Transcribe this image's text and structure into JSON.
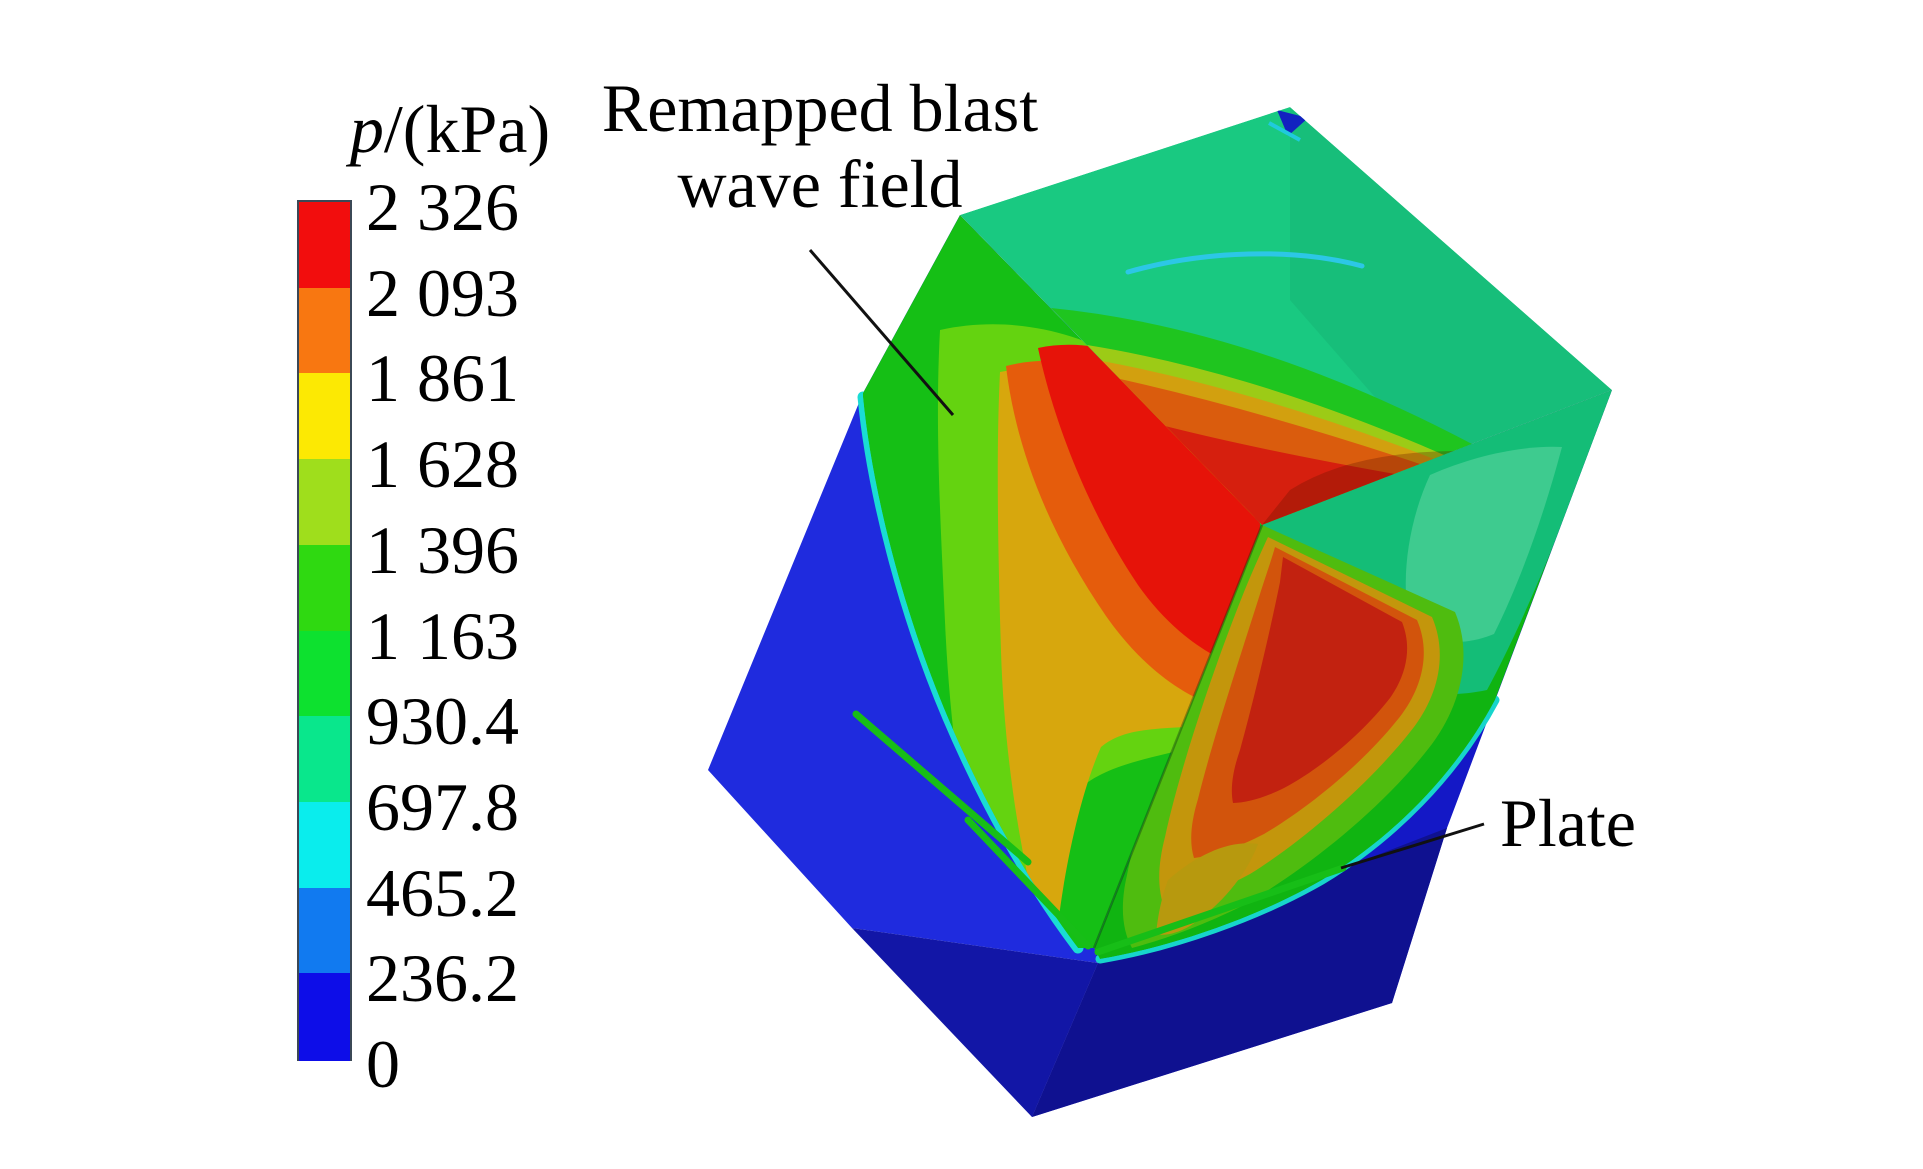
{
  "legend": {
    "title_italic": "p",
    "title_rest": "/(kPa)",
    "tick_labels": [
      "2 326",
      "2 093",
      "1 861",
      "1 628",
      "1 396",
      "1 163",
      "930.4",
      "697.8",
      "465.2",
      "236.2",
      "0"
    ],
    "block_colors": [
      "#F20D0D",
      "#F87711",
      "#FCE903",
      "#9FDE1C",
      "#2FD911",
      "#0DE12F",
      "#09E78C",
      "#0AEDED",
      "#117AF0",
      "#0D0DE8"
    ]
  },
  "annotations": {
    "blast_line1": "Remapped blast",
    "blast_line2": "wave field",
    "plate": "Plate"
  },
  "chart_data": {
    "type": "heatmap",
    "title": "",
    "value_label": "p/(kPa)",
    "colorbar_levels_kpa": [
      2326,
      2093,
      1861,
      1628,
      1396,
      1163,
      930.4,
      697.8,
      465.2,
      236.2,
      0
    ],
    "colorbar_colors_top_to_bottom": [
      "#F20D0D",
      "#F87711",
      "#FCE903",
      "#9FDE1C",
      "#2FD911",
      "#0DE12F",
      "#09E78C",
      "#0AEDED",
      "#117AF0",
      "#0D0DE8"
    ],
    "legend_position": "left",
    "annotations": [
      "Remapped blast wave field",
      "Plate"
    ]
  },
  "palette": {
    "ambient_left_face": "#1F2BDE",
    "ambient_right_face": "#1418C6",
    "ambient_bottom_left": "#1216A6",
    "ambient_bottom_right": "#0F1190",
    "top_face_teal": "#19C981",
    "shock_front_cyan": "#1ADCD4",
    "plate_edge_green": "#17BE17"
  }
}
